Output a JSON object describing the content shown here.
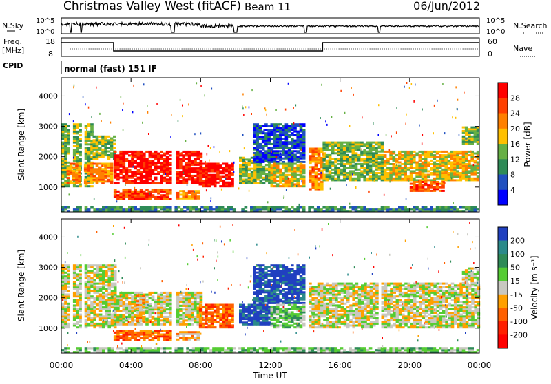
{
  "header": {
    "title": "Christmas Valley West (fitACF)",
    "beam": "Beam 11",
    "date": "06/Jun/2012"
  },
  "strips": {
    "nsky_label": "N.Sky",
    "nsky_ticks": [
      "10^5",
      "10^0"
    ],
    "nsearch_label": "N.Search",
    "nsearch_ticks": [
      "10^5",
      "10^0"
    ],
    "freq_label_1": "Freq.",
    "freq_label_2": "[MHz]",
    "freq_ticks": [
      "18",
      "8"
    ],
    "nave_label": "Nave",
    "nave_ticks": [
      "60",
      "0"
    ],
    "cpid_label": "CPID",
    "cpid_text": "normal (fast) 151 IF"
  },
  "colors": {
    "power_scale": [
      "#0000ff",
      "#2050c0",
      "#2e8b57",
      "#66b044",
      "#ffc000",
      "#ff8000",
      "#ff4000",
      "#ff0000"
    ],
    "velocity_scale": [
      "#2040c0",
      "#2b8a8a",
      "#2e8b57",
      "#55cc33",
      "#c8c8c0",
      "#ffa000",
      "#ff6000",
      "#ff2000",
      "#ff0000"
    ],
    "ground_scatter": "#c8c8c0"
  },
  "chart_data": [
    {
      "type": "heatmap",
      "name": "power",
      "ylabel": "Slant Range [km]",
      "xlabel": "Time UT",
      "x_ticks": [
        "00:00",
        "04:00",
        "08:00",
        "12:00",
        "16:00",
        "20:00",
        "00:00"
      ],
      "xlim_hours": [
        0,
        24
      ],
      "y_ticks": [
        1000,
        2000,
        3000,
        4000
      ],
      "ylim": [
        180,
        4600
      ],
      "colorbar_label": "Power [dB]",
      "colorbar_ticks": [
        4,
        8,
        12,
        16,
        20,
        24,
        28
      ],
      "regions": [
        {
          "t0": 0.0,
          "t1": 1.8,
          "r0": 1000,
          "r1": 3100,
          "level": 3
        },
        {
          "t0": 1.8,
          "t1": 3.0,
          "r0": 1900,
          "r1": 2700,
          "level": 3
        },
        {
          "t0": 0.3,
          "t1": 2.9,
          "r0": 1100,
          "r1": 1800,
          "level": 5
        },
        {
          "t0": 3.0,
          "t1": 6.2,
          "r0": 1100,
          "r1": 2200,
          "level": 7
        },
        {
          "t0": 3.0,
          "t1": 6.2,
          "r0": 580,
          "r1": 950,
          "level": 6
        },
        {
          "t0": 6.6,
          "t1": 8.0,
          "r0": 1100,
          "r1": 2200,
          "level": 7
        },
        {
          "t0": 6.6,
          "t1": 7.9,
          "r0": 600,
          "r1": 900,
          "level": 5
        },
        {
          "t0": 7.9,
          "t1": 9.8,
          "r0": 1000,
          "r1": 1800,
          "level": 7
        },
        {
          "t0": 10.2,
          "t1": 12.0,
          "r0": 1100,
          "r1": 2000,
          "level": 3
        },
        {
          "t0": 11.0,
          "t1": 13.9,
          "r0": 1800,
          "r1": 3100,
          "level": 1
        },
        {
          "t0": 12.0,
          "t1": 13.9,
          "r0": 1000,
          "r1": 1800,
          "level": 4
        },
        {
          "t0": 14.2,
          "t1": 15.0,
          "r0": 900,
          "r1": 2300,
          "level": 5
        },
        {
          "t0": 15.0,
          "t1": 18.5,
          "r0": 1200,
          "r1": 2500,
          "level": 3
        },
        {
          "t0": 18.5,
          "t1": 24.0,
          "r0": 1200,
          "r1": 2200,
          "level": 4
        },
        {
          "t0": 20.0,
          "t1": 22.0,
          "r0": 850,
          "r1": 1200,
          "level": 6
        },
        {
          "t0": 23.0,
          "t1": 24.0,
          "r0": 2400,
          "r1": 3000,
          "level": 3
        },
        {
          "t0": 0.0,
          "t1": 24.0,
          "r0": 180,
          "r1": 380,
          "level": 2
        }
      ]
    },
    {
      "type": "heatmap",
      "name": "velocity",
      "ylabel": "Slant Range [km]",
      "xlabel": "Time UT",
      "x_ticks": [
        "00:00",
        "04:00",
        "08:00",
        "12:00",
        "16:00",
        "20:00",
        "00:00"
      ],
      "xlim_hours": [
        0,
        24
      ],
      "y_ticks": [
        1000,
        2000,
        3000,
        4000
      ],
      "ylim": [
        180,
        4600
      ],
      "colorbar_label": "Velocity [m s⁻¹]",
      "colorbar_ticks": [
        200,
        100,
        50,
        15,
        -15,
        -50,
        -100,
        -200
      ],
      "regions": [
        {
          "t0": 0.0,
          "t1": 3.0,
          "r0": 1000,
          "r1": 3100,
          "level": 4
        },
        {
          "t0": 3.0,
          "t1": 6.2,
          "r0": 1100,
          "r1": 2200,
          "level": 4
        },
        {
          "t0": 4.3,
          "t1": 4.8,
          "r0": 1200,
          "r1": 2100,
          "level": 5
        },
        {
          "t0": 3.0,
          "t1": 6.2,
          "r0": 580,
          "r1": 950,
          "level": 6
        },
        {
          "t0": 6.6,
          "t1": 8.0,
          "r0": 1100,
          "r1": 2200,
          "level": 4
        },
        {
          "t0": 6.6,
          "t1": 7.9,
          "r0": 600,
          "r1": 900,
          "level": 5
        },
        {
          "t0": 7.9,
          "t1": 9.8,
          "r0": 1000,
          "r1": 1800,
          "level": 6
        },
        {
          "t0": 10.2,
          "t1": 12.0,
          "r0": 1100,
          "r1": 1800,
          "level": 0
        },
        {
          "t0": 11.0,
          "t1": 13.9,
          "r0": 1800,
          "r1": 3100,
          "level": 0
        },
        {
          "t0": 12.0,
          "t1": 13.9,
          "r0": 1000,
          "r1": 1800,
          "level": 3
        },
        {
          "t0": 14.2,
          "t1": 24.0,
          "r0": 1000,
          "r1": 2500,
          "level": 4
        },
        {
          "t0": 23.0,
          "t1": 24.0,
          "r0": 2400,
          "r1": 3000,
          "level": 4
        },
        {
          "t0": 0.0,
          "t1": 24.0,
          "r0": 180,
          "r1": 380,
          "level": 3
        }
      ]
    }
  ]
}
